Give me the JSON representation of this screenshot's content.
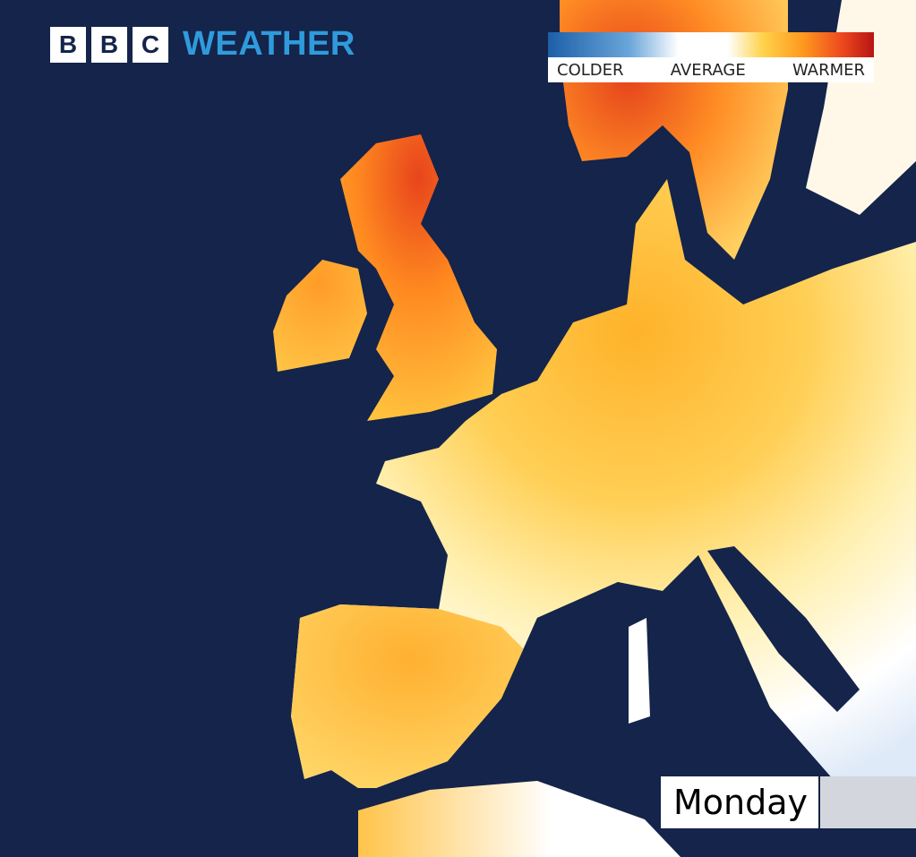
{
  "brand": {
    "letters": [
      "B",
      "B",
      "C"
    ],
    "product": "WEATHER",
    "color": "#2f9bdc"
  },
  "legend": {
    "colder": "COLDER",
    "average": "AVERAGE",
    "warmer": "WARMER",
    "colors": {
      "colder": "#1d5fa8",
      "average": "#ffffff",
      "warmer": "#b81414"
    }
  },
  "day_label": "Monday",
  "colors": {
    "sea": "#14244a",
    "land_warm": "#ffb52a",
    "land_hot": "#ee4a1e",
    "land_average": "#fff6d8"
  }
}
